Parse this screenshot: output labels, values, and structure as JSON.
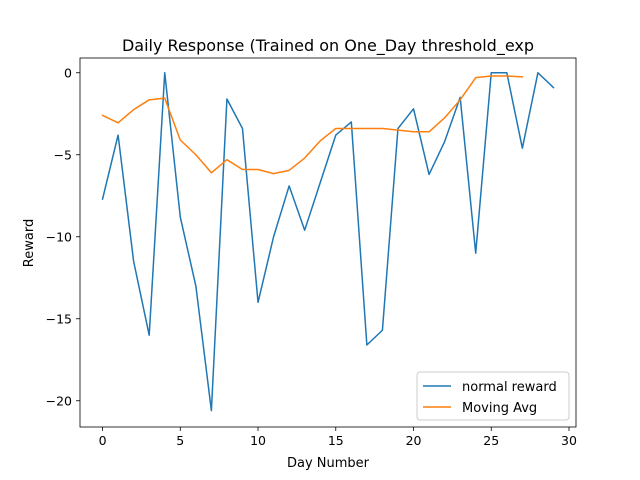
{
  "chart_data": {
    "type": "line",
    "title": "Daily Response (Trained on One_Day threshold_exp",
    "xlabel": "Day Number",
    "ylabel": "Reward",
    "xlim": [
      -1.45,
      30.45
    ],
    "ylim": [
      -21.6,
      0.9
    ],
    "x_ticks": [
      0,
      5,
      10,
      15,
      20,
      25,
      30
    ],
    "y_ticks": [
      0,
      -5,
      -10,
      -15,
      -20
    ],
    "y_tick_labels": [
      "0",
      "−5",
      "−10",
      "−15",
      "−20"
    ],
    "grid": false,
    "legend_position": "lower-right",
    "series": [
      {
        "name": "normal reward",
        "color": "#1f77b4",
        "x": [
          0,
          1,
          2,
          3,
          4,
          5,
          6,
          7,
          8,
          9,
          10,
          11,
          12,
          13,
          14,
          15,
          16,
          17,
          18,
          19,
          20,
          21,
          22,
          23,
          24,
          25,
          26,
          27,
          28,
          29
        ],
        "values": [
          -7.7,
          -3.8,
          -11.5,
          -16.0,
          0.0,
          -8.8,
          -13.0,
          -20.6,
          -1.6,
          -3.4,
          -14.0,
          -10.0,
          -6.9,
          -9.6,
          -6.7,
          -3.8,
          -3.0,
          -16.6,
          -15.7,
          -3.4,
          -2.2,
          -6.2,
          -4.2,
          -1.5,
          -11.0,
          0.0,
          0.0,
          -4.6,
          0.0,
          -0.9
        ]
      },
      {
        "name": "Moving Avg",
        "color": "#ff7f0e",
        "x": [
          0,
          1,
          2,
          3,
          4,
          5,
          6,
          7,
          8,
          9,
          10,
          11,
          12,
          13,
          14,
          15,
          16,
          17,
          18,
          19,
          20,
          21,
          22,
          23,
          24,
          25,
          26,
          27
        ],
        "values": [
          -2.6,
          -3.05,
          -2.25,
          -1.65,
          -1.55,
          -4.1,
          -5.0,
          -6.1,
          -5.3,
          -5.9,
          -5.9,
          -6.15,
          -5.95,
          -5.2,
          -4.15,
          -3.4,
          -3.4,
          -3.4,
          -3.4,
          -3.5,
          -3.6,
          -3.6,
          -2.75,
          -1.65,
          -0.3,
          -0.2,
          -0.2,
          -0.25
        ]
      }
    ]
  }
}
